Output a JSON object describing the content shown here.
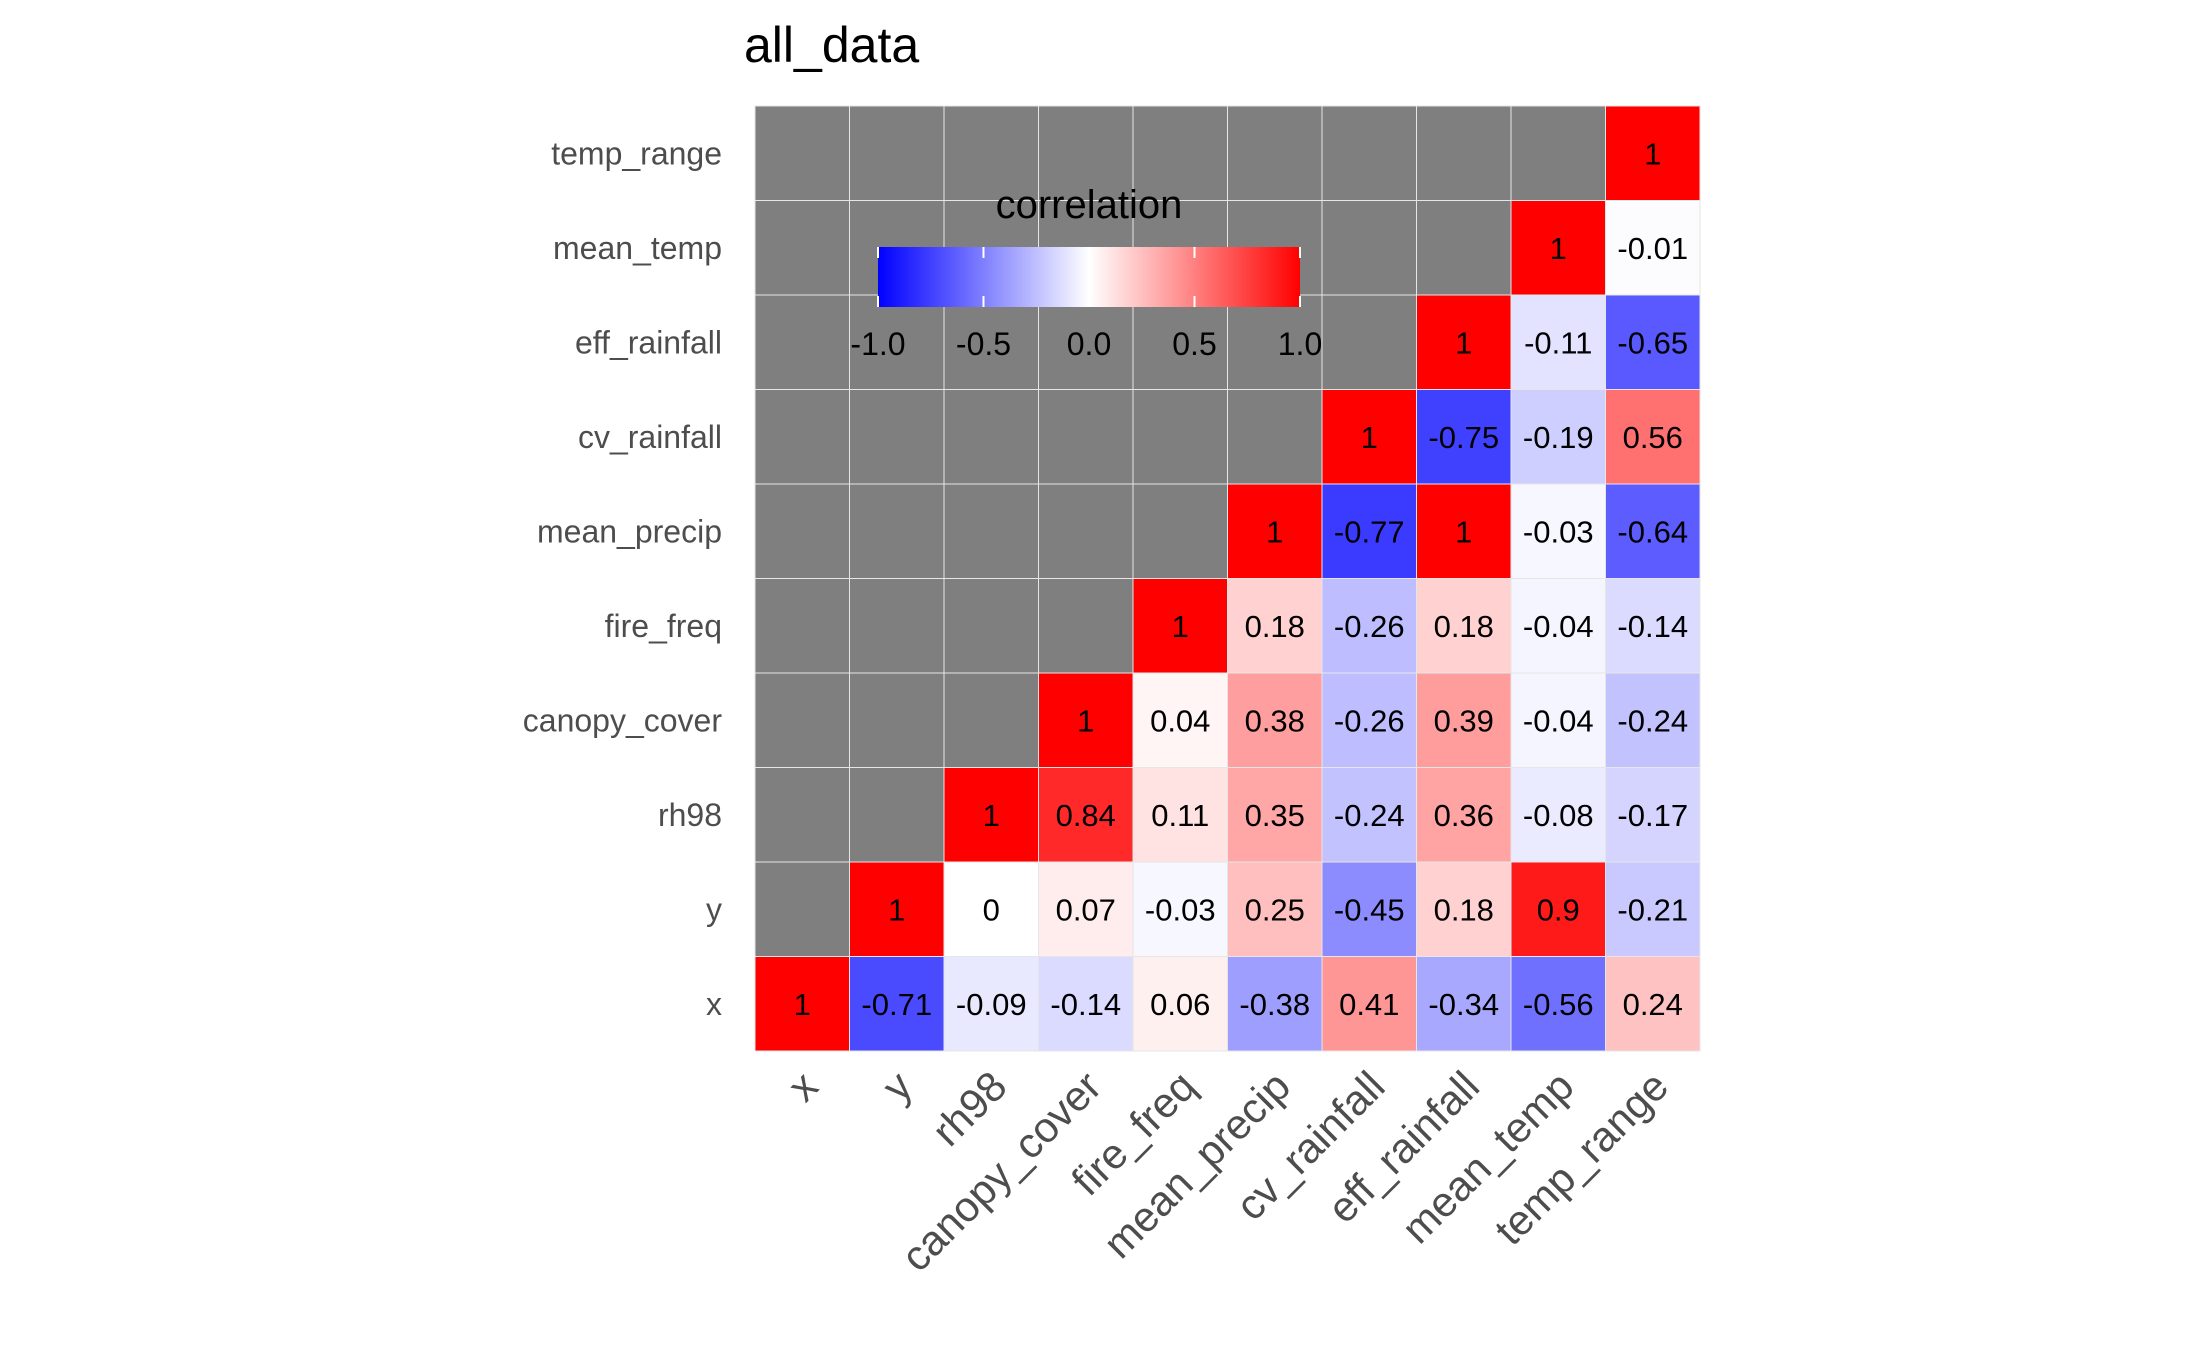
{
  "chart_data": {
    "type": "heatmap",
    "title": "all_data",
    "variables": [
      "x",
      "y",
      "rh98",
      "canopy_cover",
      "fire_freq",
      "mean_precip",
      "cv_rainfall",
      "eff_rainfall",
      "mean_temp",
      "temp_range"
    ],
    "values": [
      [
        1,
        -0.71,
        -0.09,
        -0.14,
        0.06,
        -0.38,
        0.41,
        -0.34,
        -0.56,
        0.24
      ],
      [
        null,
        1,
        0,
        0.07,
        -0.03,
        0.25,
        -0.45,
        0.18,
        0.9,
        -0.21
      ],
      [
        null,
        null,
        1,
        0.84,
        0.11,
        0.35,
        -0.24,
        0.36,
        -0.08,
        -0.17
      ],
      [
        null,
        null,
        null,
        1,
        0.04,
        0.38,
        -0.26,
        0.39,
        -0.04,
        -0.24
      ],
      [
        null,
        null,
        null,
        null,
        1,
        0.18,
        -0.26,
        0.18,
        -0.04,
        -0.14
      ],
      [
        null,
        null,
        null,
        null,
        null,
        1,
        -0.77,
        1,
        -0.03,
        -0.64
      ],
      [
        null,
        null,
        null,
        null,
        null,
        null,
        1,
        -0.75,
        -0.19,
        0.56
      ],
      [
        null,
        null,
        null,
        null,
        null,
        null,
        null,
        1,
        -0.11,
        -0.65
      ],
      [
        null,
        null,
        null,
        null,
        null,
        null,
        null,
        null,
        1,
        -0.01
      ],
      [
        null,
        null,
        null,
        null,
        null,
        null,
        null,
        null,
        null,
        1
      ]
    ],
    "legend": {
      "title": "correlation",
      "range": [
        -1,
        1
      ],
      "ticks": [
        "-1.0",
        "-0.5",
        "0.0",
        "0.5",
        "1.0"
      ],
      "placement": "inside-top-left"
    },
    "colors": {
      "low": "#0000ff",
      "mid": "#ffffff",
      "high": "#ff0000",
      "na": "#7f7f7f"
    }
  }
}
